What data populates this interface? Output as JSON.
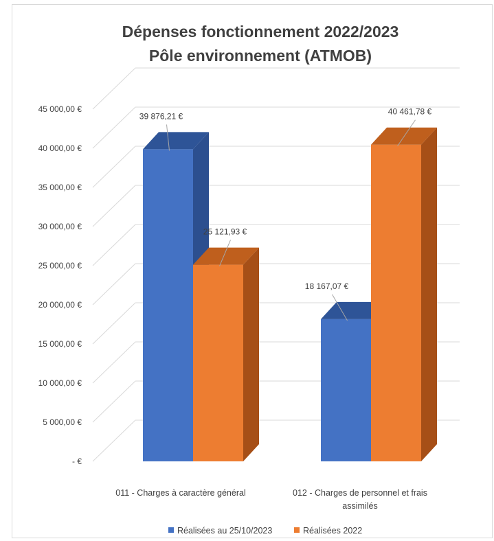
{
  "chart_data": {
    "type": "bar",
    "style": "3d-clustered-column",
    "title_lines": [
      "Dépenses fonctionnement 2022/2023",
      "Pôle environnement (ATMOB)"
    ],
    "categories": [
      [
        "011 - Charges à caractère général"
      ],
      [
        "012 - Charges de personnel et frais",
        "assimilés"
      ]
    ],
    "series": [
      {
        "name": "Réalisées au 25/10/2023",
        "values": [
          39876.21,
          18167.07
        ],
        "labels": [
          "39 876,21 €",
          "18 167,07 €"
        ],
        "color": "#4472c4",
        "color_side": "#2c4f8f",
        "color_top": "#2e5497"
      },
      {
        "name": "Réalisées 2022",
        "values": [
          25121.93,
          40461.78
        ],
        "labels": [
          "25 121,93 €",
          "40 461,78 €"
        ],
        "color": "#ed7d31",
        "color_side": "#a64f17",
        "color_top": "#bf5f1d"
      }
    ],
    "yticks": [
      0,
      5000,
      10000,
      15000,
      20000,
      25000,
      30000,
      35000,
      40000,
      45000
    ],
    "ytick_labels": [
      "- €",
      "5 000,00 €",
      "10 000,00 €",
      "15 000,00 €",
      "20 000,00 €",
      "25 000,00 €",
      "30 000,00 €",
      "35 000,00 €",
      "40 000,00 €",
      "45 000,00 €"
    ],
    "ylim": [
      0,
      45000
    ],
    "grid": true,
    "legend_position": "bottom"
  }
}
